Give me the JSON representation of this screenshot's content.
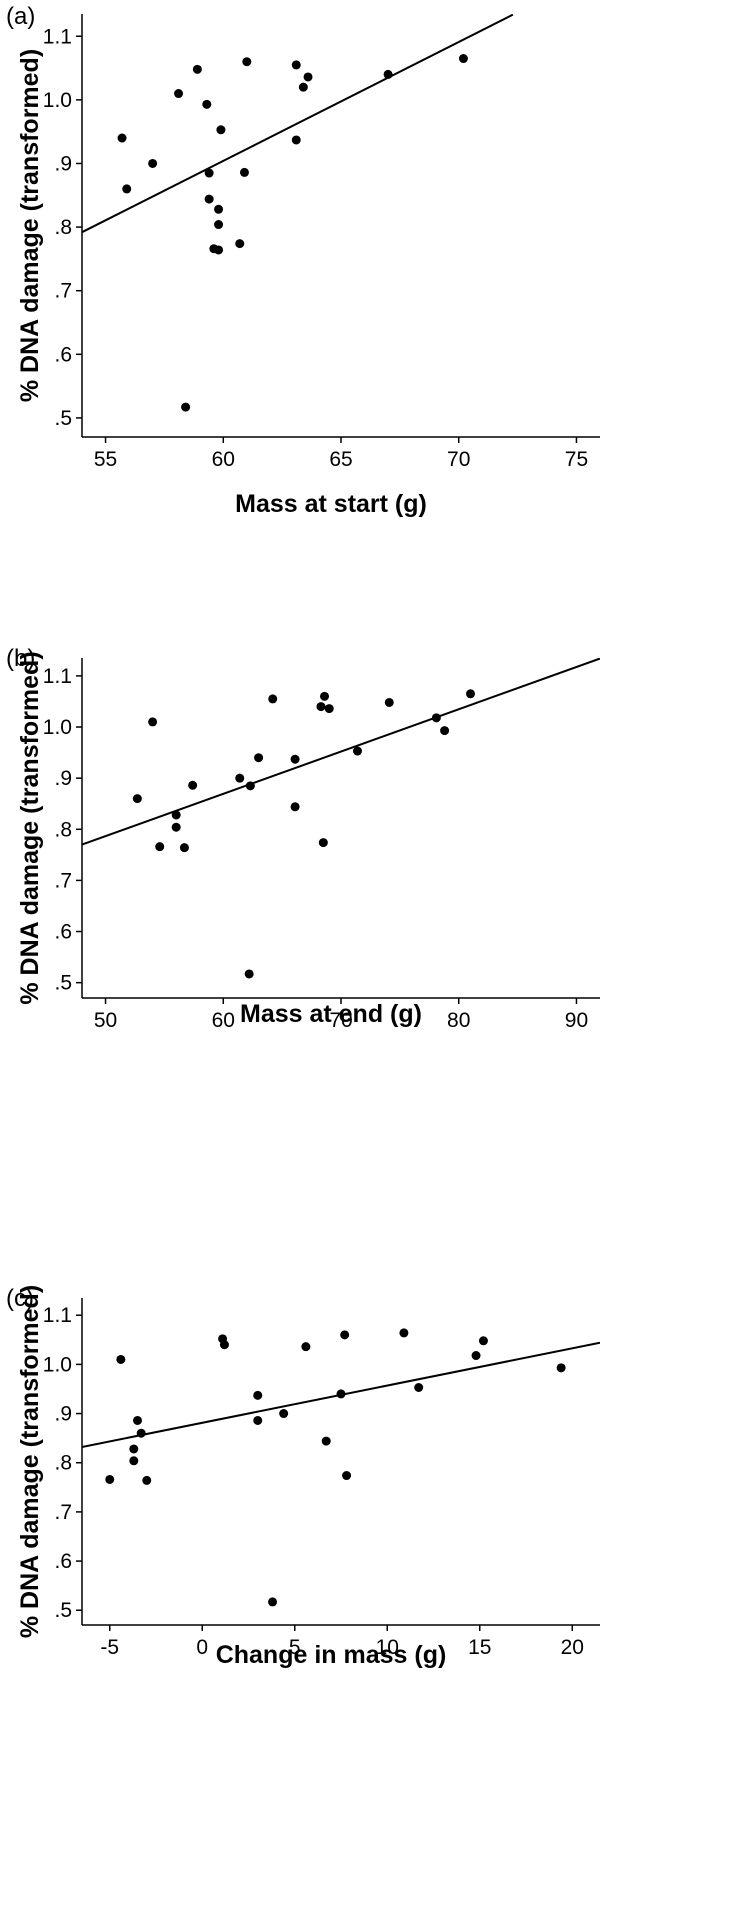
{
  "chart_data": [
    {
      "type": "scatter",
      "panel_label": "(a)",
      "xlabel": "Mass at start (g)",
      "ylabel": "% DNA damage (transformed)",
      "xlim": [
        54,
        76
      ],
      "ylim": [
        0.47,
        1.135
      ],
      "xticks": [
        55,
        60,
        65,
        70,
        75
      ],
      "xtick_labels": [
        "55",
        "60",
        "65",
        "70",
        "75"
      ],
      "yticks": [
        0.5,
        0.6,
        0.7,
        0.8,
        0.9,
        1.0,
        1.1
      ],
      "ytick_labels": [
        ".5",
        ".6",
        ".7",
        ".8",
        ".9",
        "1.0",
        "1.1"
      ],
      "points": [
        [
          55.7,
          0.94
        ],
        [
          55.9,
          0.86
        ],
        [
          57.0,
          0.9
        ],
        [
          58.1,
          1.01
        ],
        [
          58.9,
          1.048
        ],
        [
          59.3,
          0.993
        ],
        [
          59.4,
          0.885
        ],
        [
          59.4,
          0.844
        ],
        [
          59.6,
          0.766
        ],
        [
          59.8,
          0.764
        ],
        [
          59.8,
          0.828
        ],
        [
          59.8,
          0.804
        ],
        [
          59.9,
          0.953
        ],
        [
          58.4,
          0.517
        ],
        [
          60.7,
          0.774
        ],
        [
          60.9,
          0.886
        ],
        [
          61.0,
          1.06
        ],
        [
          63.1,
          1.055
        ],
        [
          63.1,
          0.937
        ],
        [
          63.4,
          1.02
        ],
        [
          63.6,
          1.036
        ],
        [
          67.0,
          1.04
        ],
        [
          70.2,
          1.065
        ]
      ],
      "fit_line": [
        [
          54,
          0.792
        ],
        [
          72.3,
          1.134
        ]
      ]
    },
    {
      "type": "scatter",
      "panel_label": "(b)",
      "xlabel": "Mass at end (g)",
      "ylabel": "% DNA damage (transformed)",
      "xlim": [
        48,
        92
      ],
      "ylim": [
        0.47,
        1.135
      ],
      "xticks": [
        50,
        60,
        70,
        80,
        90
      ],
      "xtick_labels": [
        "50",
        "60",
        "70",
        "80",
        "90"
      ],
      "yticks": [
        0.5,
        0.6,
        0.7,
        0.8,
        0.9,
        1.0,
        1.1
      ],
      "ytick_labels": [
        ".5",
        ".6",
        ".7",
        ".8",
        ".9",
        "1.0",
        "1.1"
      ],
      "points": [
        [
          52.7,
          0.86
        ],
        [
          54.0,
          1.01
        ],
        [
          54.6,
          0.766
        ],
        [
          56.0,
          0.828
        ],
        [
          56.0,
          0.804
        ],
        [
          56.7,
          0.764
        ],
        [
          57.4,
          0.886
        ],
        [
          61.4,
          0.9
        ],
        [
          62.3,
          0.885
        ],
        [
          62.2,
          0.517
        ],
        [
          63.0,
          0.94
        ],
        [
          64.2,
          1.055
        ],
        [
          66.1,
          0.937
        ],
        [
          66.1,
          0.844
        ],
        [
          68.3,
          1.04
        ],
        [
          68.6,
          1.06
        ],
        [
          68.5,
          0.774
        ],
        [
          69.0,
          1.036
        ],
        [
          71.4,
          0.953
        ],
        [
          74.1,
          1.048
        ],
        [
          78.1,
          1.018
        ],
        [
          78.8,
          0.993
        ],
        [
          81.0,
          1.065
        ]
      ],
      "fit_line": [
        [
          48,
          0.77
        ],
        [
          92,
          1.134
        ]
      ]
    },
    {
      "type": "scatter",
      "panel_label": "(c)",
      "xlabel": "Change in mass (g)",
      "ylabel": "% DNA damage (transformed)",
      "xlim": [
        -6.5,
        21.5
      ],
      "ylim": [
        0.47,
        1.135
      ],
      "xticks": [
        -5,
        0,
        5,
        10,
        15,
        20
      ],
      "xtick_labels": [
        "-5",
        "0",
        "5",
        "10",
        "15",
        "20"
      ],
      "yticks": [
        0.5,
        0.6,
        0.7,
        0.8,
        0.9,
        1.0,
        1.1
      ],
      "ytick_labels": [
        ".5",
        ".6",
        ".7",
        ".8",
        ".9",
        "1.0",
        "1.1"
      ],
      "points": [
        [
          -5.0,
          0.766
        ],
        [
          -4.4,
          1.01
        ],
        [
          -3.7,
          0.828
        ],
        [
          -3.7,
          0.804
        ],
        [
          -3.5,
          0.886
        ],
        [
          -3.3,
          0.86
        ],
        [
          -3.0,
          0.764
        ],
        [
          1.1,
          1.052
        ],
        [
          1.2,
          1.04
        ],
        [
          3.0,
          0.937
        ],
        [
          3.0,
          0.886
        ],
        [
          3.8,
          0.517
        ],
        [
          4.4,
          0.9
        ],
        [
          5.6,
          1.036
        ],
        [
          6.7,
          0.844
        ],
        [
          7.5,
          0.94
        ],
        [
          7.7,
          1.06
        ],
        [
          7.8,
          0.774
        ],
        [
          10.9,
          1.064
        ],
        [
          11.7,
          0.953
        ],
        [
          14.8,
          1.018
        ],
        [
          15.2,
          1.048
        ],
        [
          19.4,
          0.993
        ]
      ],
      "fit_line": [
        [
          -6.5,
          0.832
        ],
        [
          21.5,
          1.044
        ]
      ]
    }
  ]
}
